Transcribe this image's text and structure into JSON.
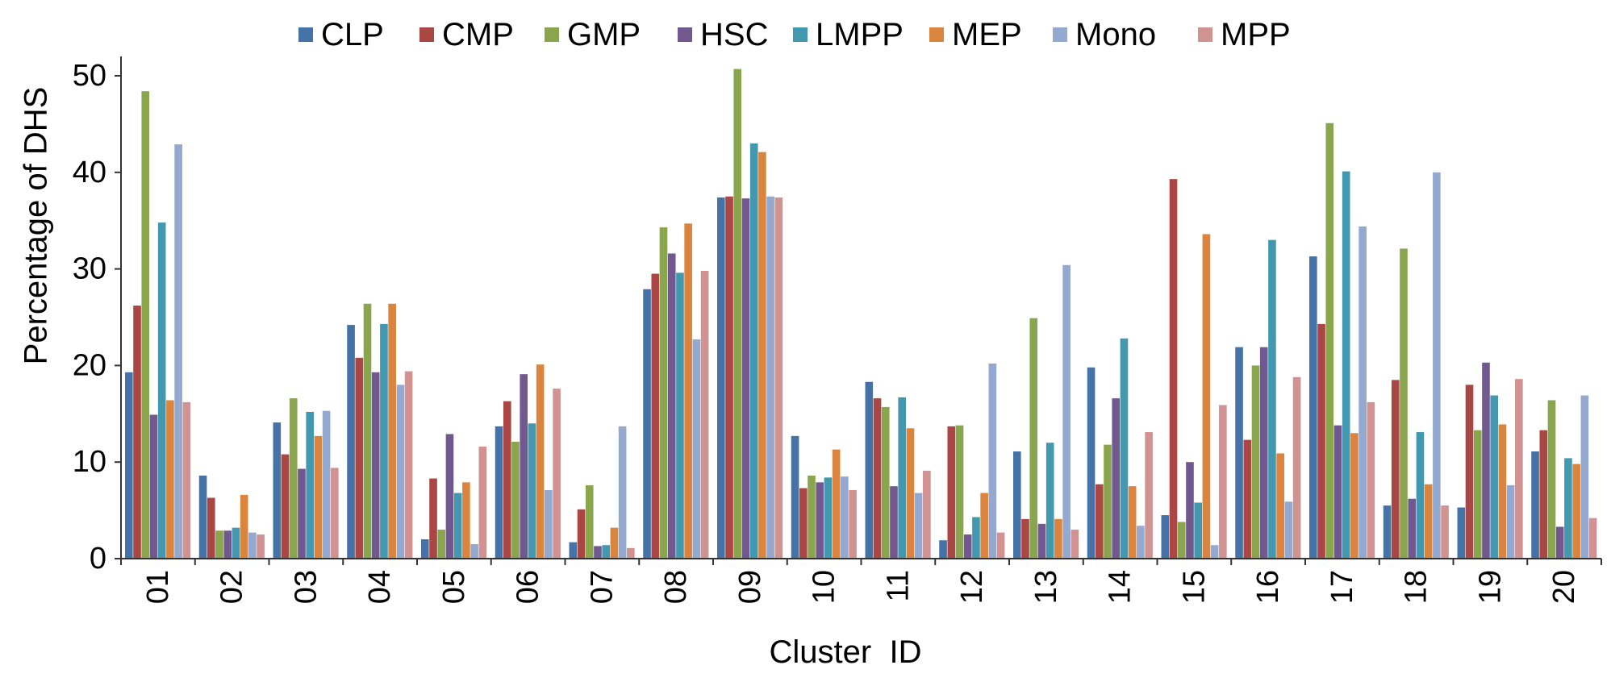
{
  "chart_data": {
    "type": "bar",
    "xlabel": "Cluster  ID",
    "ylabel": "Percentage of DHS",
    "ylim": [
      0,
      50
    ],
    "yticks": [
      0,
      10,
      20,
      30,
      40,
      50
    ],
    "grid": false,
    "legend_position": "top",
    "categories": [
      "01",
      "02",
      "03",
      "04",
      "05",
      "06",
      "07",
      "08",
      "09",
      "10",
      "11",
      "12",
      "13",
      "14",
      "15",
      "16",
      "17",
      "18",
      "19",
      "20"
    ],
    "series": [
      {
        "name": "CLP",
        "color": "#4572A7",
        "values": [
          19.3,
          8.6,
          14.1,
          24.2,
          2.0,
          13.7,
          1.7,
          27.9,
          37.4,
          12.7,
          18.3,
          1.9,
          11.1,
          19.8,
          4.5,
          21.9,
          31.3,
          5.5,
          5.3,
          11.1
        ]
      },
      {
        "name": "CMP",
        "color": "#AA4643",
        "values": [
          26.2,
          6.3,
          10.8,
          20.8,
          8.3,
          16.3,
          5.1,
          29.5,
          37.5,
          7.3,
          16.6,
          13.7,
          4.1,
          7.7,
          39.3,
          12.3,
          24.3,
          18.5,
          18.0,
          13.3
        ]
      },
      {
        "name": "GMP",
        "color": "#89A54E",
        "values": [
          48.4,
          2.9,
          16.6,
          26.4,
          3.0,
          12.1,
          7.6,
          34.3,
          50.7,
          8.6,
          15.7,
          13.8,
          24.9,
          11.8,
          3.8,
          20.0,
          45.1,
          32.1,
          13.3,
          16.4
        ]
      },
      {
        "name": "HSC",
        "color": "#71588F",
        "values": [
          14.9,
          2.9,
          9.3,
          19.3,
          12.9,
          19.1,
          1.3,
          31.6,
          37.3,
          7.9,
          7.5,
          2.5,
          3.6,
          16.6,
          10.0,
          21.9,
          13.8,
          6.2,
          20.3,
          3.3
        ]
      },
      {
        "name": "LMPP",
        "color": "#4198AF",
        "values": [
          34.8,
          3.2,
          15.2,
          24.3,
          6.8,
          14.0,
          1.4,
          29.6,
          43.0,
          8.4,
          16.7,
          4.3,
          12.0,
          22.8,
          5.8,
          33.0,
          40.1,
          13.1,
          16.9,
          10.4
        ]
      },
      {
        "name": "MEP",
        "color": "#DB843D",
        "values": [
          16.4,
          6.6,
          12.7,
          26.4,
          7.9,
          20.1,
          3.2,
          34.7,
          42.1,
          11.3,
          13.5,
          6.8,
          4.1,
          7.5,
          33.6,
          10.9,
          13.0,
          7.7,
          13.9,
          9.8
        ]
      },
      {
        "name": "Mono",
        "color": "#93A9CF",
        "values": [
          42.9,
          2.7,
          15.3,
          18.0,
          1.5,
          7.1,
          13.7,
          22.7,
          37.5,
          8.5,
          6.8,
          20.2,
          30.4,
          3.4,
          1.4,
          5.9,
          34.4,
          40.0,
          7.6,
          16.9
        ]
      },
      {
        "name": "MPP",
        "color": "#D19392",
        "values": [
          16.2,
          2.5,
          9.4,
          19.4,
          11.6,
          17.6,
          1.1,
          29.8,
          37.4,
          7.1,
          9.1,
          2.7,
          3.0,
          13.1,
          15.9,
          18.8,
          16.2,
          5.5,
          18.6,
          4.2
        ]
      }
    ]
  }
}
